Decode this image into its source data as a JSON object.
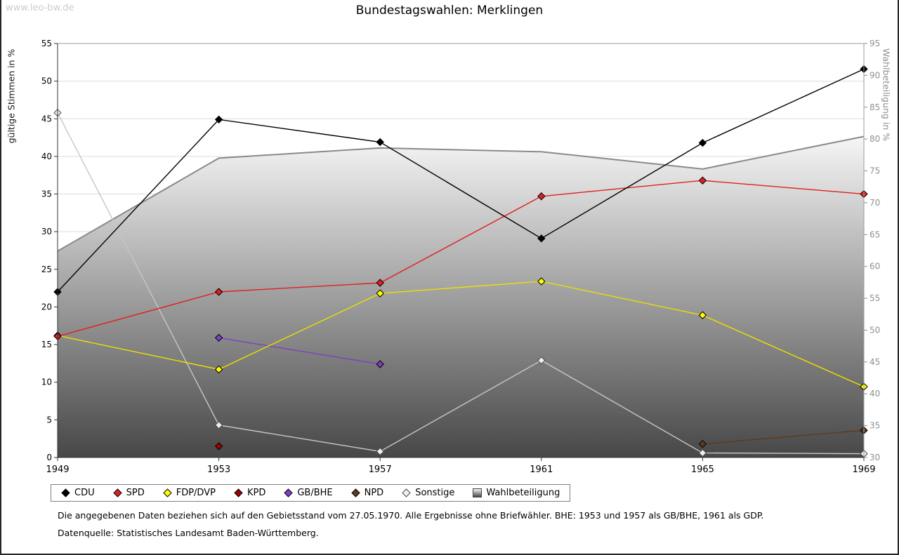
{
  "watermark": "www.leo-bw.de",
  "title": "Bundestagswahlen: Merklingen",
  "notes": [
    "Die angegebenen Daten beziehen sich auf den Gebietsstand vom 27.05.1970. Alle Ergebnisse ohne Briefwähler. BHE: 1953 und 1957 als GB/BHE, 1961 als GDP.",
    "Datenquelle: Statistisches Landesamt Baden-Württemberg."
  ],
  "chart_data": {
    "type": "line",
    "title": "Bundestagswahlen: Merklingen",
    "x": [
      1949,
      1953,
      1957,
      1961,
      1965,
      1969
    ],
    "left_axis": {
      "label": "gültige Stimmen in %",
      "min": 0,
      "max": 55,
      "step": 5
    },
    "right_axis": {
      "label": "Wahlbeteiligung in %",
      "min": 30,
      "max": 95,
      "step": 5
    },
    "grid": true,
    "legend_position": "bottom",
    "series": [
      {
        "name": "CDU",
        "color": "#000000",
        "marker_fill": "#000000",
        "values": [
          22,
          44.9,
          41.9,
          29.1,
          41.8,
          51.6
        ]
      },
      {
        "name": "SPD",
        "color": "#e02020",
        "marker_fill": "#e02020",
        "values": [
          16.1,
          22,
          23.2,
          34.7,
          36.8,
          35
        ]
      },
      {
        "name": "FDP/DVP",
        "color": "#ecdf00",
        "marker_fill": "#ffff00",
        "values": [
          16.2,
          11.7,
          21.8,
          23.4,
          18.9,
          9.4
        ]
      },
      {
        "name": "KPD",
        "color": "#a00000",
        "marker_fill": "#a00000",
        "values": [
          null,
          1.5,
          null,
          null,
          null,
          null
        ]
      },
      {
        "name": "GB/BHE",
        "color": "#7d3fc4",
        "marker_fill": "#7d3fc4",
        "values": [
          null,
          15.9,
          12.4,
          null,
          null,
          null
        ]
      },
      {
        "name": "NPD",
        "color": "#5f3a1d",
        "marker_fill": "#5f3a1d",
        "values": [
          null,
          null,
          null,
          null,
          1.8,
          3.6
        ]
      },
      {
        "name": "Sonstige",
        "color": "#c6c6c6",
        "marker_fill": "#efefef",
        "marker_stroke": "#4a4a4a",
        "values": [
          45.8,
          4.3,
          0.8,
          12.9,
          0.6,
          0.5
        ]
      }
    ],
    "area": {
      "name": "Wahlbeteiligung",
      "axis": "right",
      "line_color": "#8a8a8a",
      "fill_top": "#f6f6f6",
      "fill_bottom": "#474747",
      "values": [
        62.4,
        77,
        78.6,
        78,
        75.3,
        80.4
      ]
    }
  }
}
